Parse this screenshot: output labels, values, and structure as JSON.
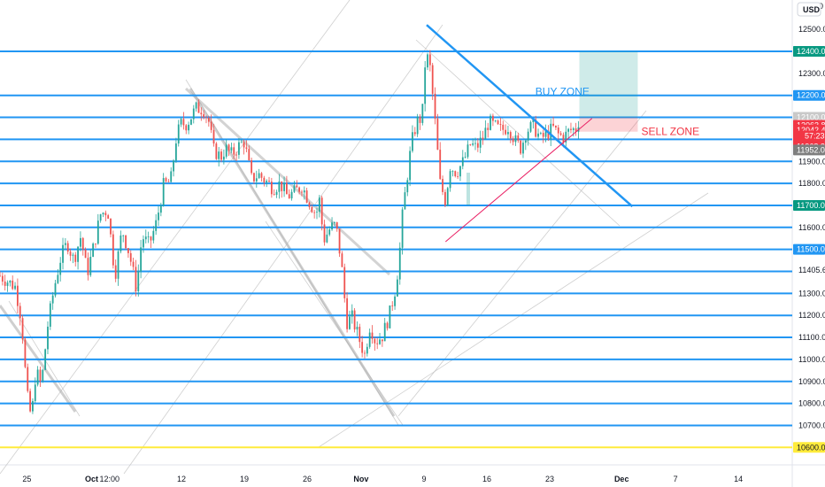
{
  "chart_data": {
    "type": "candlestick",
    "currency": "USD",
    "price_axis": {
      "range": [
        10500,
        12850
      ],
      "tick_labels": [
        "12500.0",
        "12300.0",
        "11900.0",
        "11800.0",
        "11700.0",
        "11600.0",
        "11405.6",
        "11300.0",
        "11200.0",
        "11100.0",
        "11000.0",
        "10900.0",
        "10800.0",
        "10700.0"
      ],
      "tick_values": [
        12500,
        12300,
        11900,
        11800,
        11700,
        11600,
        11405.6,
        11300,
        11200,
        11100,
        11000,
        10900,
        10800,
        10700
      ],
      "top_partial_label": "0"
    },
    "time_axis": {
      "labels": [
        "25",
        "Oct",
        "12:00",
        "12",
        "19",
        "26",
        "Nov",
        "9",
        "16",
        "23",
        "Dec",
        "7",
        "14"
      ],
      "positions": [
        0.8,
        8,
        10,
        18,
        25,
        32,
        38,
        45,
        52,
        59,
        67,
        73,
        80
      ],
      "bold": [
        false,
        true,
        false,
        false,
        false,
        false,
        true,
        false,
        false,
        false,
        true,
        false,
        false
      ],
      "range": [
        -2.2,
        86
      ]
    },
    "horizontal_levels": [
      {
        "value": 12400,
        "label": "12400.0",
        "color": "#2196f3",
        "label_bg": "#2196f3"
      },
      {
        "value": 12200,
        "label": "12200.0",
        "color": "#2196f3",
        "label_bg": "#2196f3"
      },
      {
        "value": 12100,
        "label": "12100.0",
        "color": "#2196f3",
        "label_bg": "#2196f3"
      },
      {
        "value": 12000,
        "label": "12000.0",
        "color": "#2196f3",
        "label_bg": "#2196f3"
      },
      {
        "value": 11900,
        "label": "",
        "color": "#2196f3",
        "label_bg": ""
      },
      {
        "value": 11800,
        "label": "",
        "color": "#2196f3",
        "label_bg": ""
      },
      {
        "value": 11700,
        "label": "",
        "color": "#2196f3",
        "label_bg": ""
      },
      {
        "value": 11600,
        "label": "",
        "color": "#2196f3",
        "label_bg": ""
      },
      {
        "value": 11500,
        "label": "11500.0",
        "color": "#2196f3",
        "label_bg": "#2196f3"
      },
      {
        "value": 11400,
        "label": "",
        "color": "#2196f3",
        "label_bg": ""
      },
      {
        "value": 11300,
        "label": "",
        "color": "#2196f3",
        "label_bg": ""
      },
      {
        "value": 11200,
        "label": "",
        "color": "#2196f3",
        "label_bg": ""
      },
      {
        "value": 11100,
        "label": "",
        "color": "#2196f3",
        "label_bg": ""
      },
      {
        "value": 11000,
        "label": "",
        "color": "#2196f3",
        "label_bg": ""
      },
      {
        "value": 10900,
        "label": "",
        "color": "#2196f3",
        "label_bg": ""
      },
      {
        "value": 10800,
        "label": "",
        "color": "#2196f3",
        "label_bg": ""
      },
      {
        "value": 10700,
        "label": "",
        "color": "#2196f3",
        "label_bg": ""
      },
      {
        "value": 10600,
        "label": "10600.0",
        "color": "#ffeb3b",
        "label_bg": "#ffeb3b"
      }
    ],
    "price_tags": [
      {
        "value": 12400,
        "label": "12400.0",
        "bg": "#089981"
      },
      {
        "value": 12100,
        "label": "12100.0",
        "bg": "#c9c9c9"
      },
      {
        "value": 12063.8,
        "label": "12063.8",
        "bg": "#f23645"
      },
      {
        "value": 12042.4,
        "label": "12042.4",
        "bg": "#f23645"
      },
      {
        "value": 11968.2,
        "label": "11968.2",
        "bg": "#f23645"
      },
      {
        "value": 11952.0,
        "label": "11952.0",
        "bg": "#7e7e7e"
      },
      {
        "value": 11700,
        "label": "11700.0",
        "bg": "#089981"
      }
    ],
    "last_price_countdown": "57:23",
    "zones": [
      {
        "label": "BUY ZONE",
        "color": "#2196f3",
        "t": 57.4,
        "price": 12200
      },
      {
        "label": "SELL ZONE",
        "color": "#f23645",
        "t": 69.2,
        "price": 12020
      }
    ],
    "position_box": {
      "t_start": 62.3,
      "t_end": 68.8,
      "entry": 12100,
      "target": 12400,
      "stop": 12035
    },
    "trendlines": [
      {
        "kind": "resistance",
        "color": "#2196f3",
        "from": [
          45.3,
          12520
        ],
        "to": [
          68.2,
          11695
        ]
      },
      {
        "kind": "support",
        "color": "#e91e63",
        "from": [
          47.4,
          11535
        ],
        "to": [
          63.7,
          12095
        ]
      }
    ],
    "price_path": [
      [
        -2.2,
        11380
      ],
      [
        -0.5,
        11330
      ],
      [
        0.2,
        11180
      ],
      [
        0.8,
        10840
      ],
      [
        1.3,
        10730
      ],
      [
        1.8,
        10950
      ],
      [
        2.4,
        10880
      ],
      [
        3.1,
        11150
      ],
      [
        3.8,
        11320
      ],
      [
        4.6,
        11470
      ],
      [
        5.3,
        11530
      ],
      [
        6.0,
        11450
      ],
      [
        6.8,
        11560
      ],
      [
        7.5,
        11390
      ],
      [
        8.2,
        11510
      ],
      [
        9.0,
        11660
      ],
      [
        9.8,
        11680
      ],
      [
        10.6,
        11380
      ],
      [
        11.4,
        11590
      ],
      [
        12.2,
        11480
      ],
      [
        13.0,
        11320
      ],
      [
        13.6,
        11560
      ],
      [
        14.4,
        11520
      ],
      [
        15.2,
        11620
      ],
      [
        16.0,
        11790
      ],
      [
        16.8,
        11810
      ],
      [
        17.4,
        12000
      ],
      [
        17.9,
        12070
      ],
      [
        18.6,
        12070
      ],
      [
        19.6,
        12140
      ],
      [
        20.4,
        12140
      ],
      [
        21.0,
        12090
      ],
      [
        21.6,
        11950
      ],
      [
        22.4,
        11920
      ],
      [
        22.9,
        11960
      ],
      [
        23.6,
        11930
      ],
      [
        24.4,
        11970
      ],
      [
        25.0,
        11990
      ],
      [
        25.8,
        11820
      ],
      [
        26.6,
        11840
      ],
      [
        27.4,
        11810
      ],
      [
        28.2,
        11780
      ],
      [
        29.0,
        11800
      ],
      [
        29.8,
        11740
      ],
      [
        30.6,
        11760
      ],
      [
        31.4,
        11790
      ],
      [
        32.2,
        11720
      ],
      [
        33.0,
        11660
      ],
      [
        33.4,
        11730
      ],
      [
        33.8,
        11540
      ],
      [
        34.6,
        11600
      ],
      [
        35.2,
        11610
      ],
      [
        35.8,
        11440
      ],
      [
        36.4,
        11170
      ],
      [
        37.0,
        11190
      ],
      [
        37.8,
        11090
      ],
      [
        38.4,
        11020
      ],
      [
        39.0,
        11160
      ],
      [
        39.6,
        11080
      ],
      [
        40.4,
        11110
      ],
      [
        41.2,
        11210
      ],
      [
        41.8,
        11320
      ],
      [
        42.2,
        11440
      ],
      [
        42.6,
        11650
      ],
      [
        43.0,
        11790
      ],
      [
        43.6,
        11980
      ],
      [
        44.2,
        12080
      ],
      [
        44.8,
        12100
      ],
      [
        45.2,
        12400
      ],
      [
        45.7,
        12320
      ],
      [
        46.3,
        12050
      ],
      [
        46.8,
        11800
      ],
      [
        47.4,
        11720
      ],
      [
        47.9,
        11880
      ],
      [
        48.6,
        11850
      ],
      [
        49.4,
        11900
      ],
      [
        50.2,
        11980
      ],
      [
        50.8,
        11960
      ],
      [
        51.6,
        12010
      ],
      [
        52.2,
        12080
      ],
      [
        52.8,
        12060
      ],
      [
        53.6,
        12040
      ],
      [
        54.4,
        12060
      ],
      [
        55.2,
        11990
      ],
      [
        55.8,
        11960
      ],
      [
        56.4,
        12040
      ],
      [
        57.2,
        12060
      ],
      [
        58.0,
        12000
      ],
      [
        58.8,
        12030
      ],
      [
        59.4,
        12050
      ],
      [
        60.0,
        12020
      ],
      [
        60.6,
        12010
      ],
      [
        61.2,
        12040
      ],
      [
        62.0,
        12050
      ],
      [
        62.3,
        12100
      ]
    ]
  }
}
